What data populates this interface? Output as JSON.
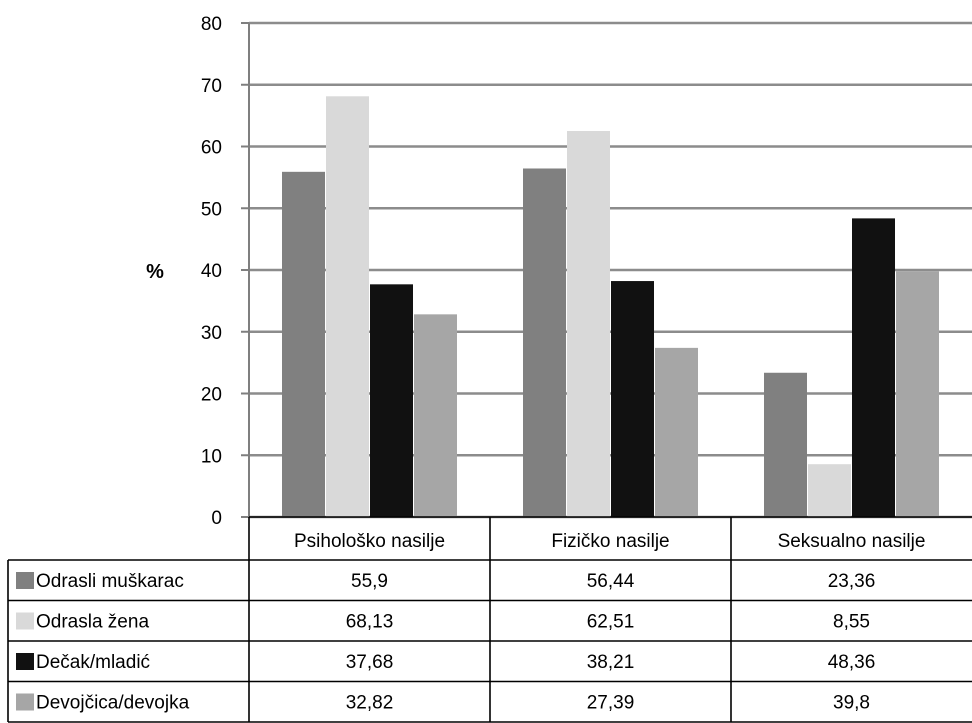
{
  "chart_data": {
    "type": "bar",
    "ylabel": "%",
    "ylim": [
      0,
      80
    ],
    "yticks": [
      0,
      10,
      20,
      30,
      40,
      50,
      60,
      70,
      80
    ],
    "grid": true,
    "legend": "data-table-below",
    "categories": [
      "Psihološko nasilje",
      "Fizičko nasilje",
      "Seksualno nasilje"
    ],
    "series": [
      {
        "name": "Odrasli muškarac",
        "color": "#808080",
        "values": [
          55.9,
          56.44,
          23.36
        ],
        "labels": [
          "55,9",
          "56,44",
          "23,36"
        ]
      },
      {
        "name": "Odrasla žena",
        "color": "#d9d9d9",
        "values": [
          68.13,
          62.51,
          8.55
        ],
        "labels": [
          "68,13",
          "62,51",
          "8,55"
        ]
      },
      {
        "name": "Dečak/mladić",
        "color": "#111111",
        "values": [
          37.68,
          38.21,
          48.36
        ],
        "labels": [
          "37,68",
          "38,21",
          "48,36"
        ]
      },
      {
        "name": "Devojčica/devojka",
        "color": "#a6a6a6",
        "values": [
          32.82,
          27.39,
          39.8
        ],
        "labels": [
          "32,82",
          "27,39",
          "39,8"
        ]
      }
    ]
  }
}
